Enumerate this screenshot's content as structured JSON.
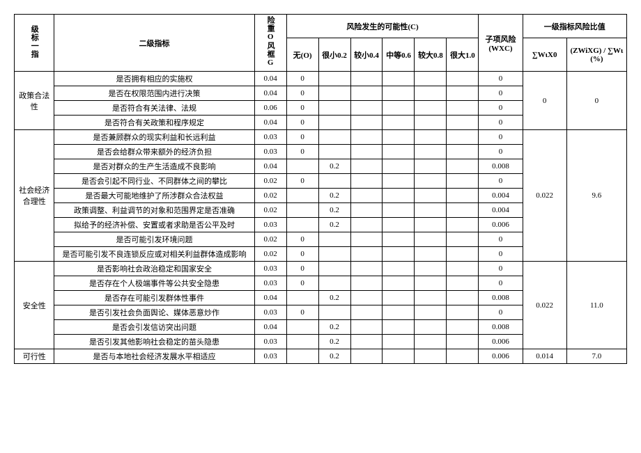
{
  "header": {
    "col_l1": "级标一指",
    "col_l2": "二级指标",
    "col_weight": "险重O风框G",
    "col_c_group": "风险发生的可能性(C)",
    "col_wxc": "子项风险(WXC)",
    "col_top_group": "一级指标风险比值",
    "col_sum": "∑WιX0",
    "col_ratio": "(ZWiXG) / ∑Wι(%)",
    "c_headers": [
      "无(O)",
      "很小0.2",
      "较小0.4",
      "中等0.6",
      "较大0.8",
      "很大1.0"
    ]
  },
  "groups": [
    {
      "name": "政策合法性",
      "sum": "0",
      "ratio": "0",
      "rows": [
        {
          "label": "是否拥有相应的实施权",
          "w": "0.04",
          "c": [
            "0",
            "",
            "",
            "",
            "",
            ""
          ],
          "wxc": "0"
        },
        {
          "label": "是否在权限范围内进行决策",
          "w": "0.04",
          "c": [
            "0",
            "",
            "",
            "",
            "",
            ""
          ],
          "wxc": "0"
        },
        {
          "label": "是否符合有关法律、法规",
          "w": "0.06",
          "c": [
            "0",
            "",
            "",
            "",
            "",
            ""
          ],
          "wxc": "0"
        },
        {
          "label": "是否符合有关政策和程序规定",
          "w": "0.04",
          "c": [
            "0",
            "",
            "",
            "",
            "",
            ""
          ],
          "wxc": "0"
        }
      ]
    },
    {
      "name": "社会经济合理性",
      "sum": "0.022",
      "ratio": "9.6",
      "rows": [
        {
          "label": "是否兼顾群众的现实利益和长远利益",
          "w": "0.03",
          "c": [
            "0",
            "",
            "",
            "",
            "",
            ""
          ],
          "wxc": "0"
        },
        {
          "label": "是否会给群众带来额外的经济负担",
          "w": "0.03",
          "c": [
            "0",
            "",
            "",
            "",
            "",
            ""
          ],
          "wxc": "0"
        },
        {
          "label": "是否对群众的生产生活造成不良影响",
          "w": "0.04",
          "c": [
            "",
            "0.2",
            "",
            "",
            "",
            ""
          ],
          "wxc": "0.008"
        },
        {
          "label": "是否会引起不同行业、不同群体之间的攀比",
          "w": "0.02",
          "c": [
            "0",
            "",
            "",
            "",
            "",
            ""
          ],
          "wxc": "0"
        },
        {
          "label": "是否最大可能地维护了所涉群众合法权益",
          "w": "0.02",
          "c": [
            "",
            "0.2",
            "",
            "",
            "",
            ""
          ],
          "wxc": "0.004"
        },
        {
          "label": "政策调整、利益调节的对象和范围界定是否准确",
          "w": "0.02",
          "c": [
            "",
            "0.2",
            "",
            "",
            "",
            ""
          ],
          "wxc": "0.004"
        },
        {
          "label": "拟给予的经济补偿、安置或者求助是否公平及时",
          "w": "0.03",
          "c": [
            "",
            "0.2",
            "",
            "",
            "",
            ""
          ],
          "wxc": "0.006"
        },
        {
          "label": "是否可能引发环境问题",
          "w": "0.02",
          "c": [
            "0",
            "",
            "",
            "",
            "",
            ""
          ],
          "wxc": "0"
        },
        {
          "label": "是否可能引发不良连锁反应或对相关利益群体造成影响",
          "w": "0.02",
          "c": [
            "0",
            "",
            "",
            "",
            "",
            ""
          ],
          "wxc": "0"
        }
      ]
    },
    {
      "name": "安全性",
      "sum": "0.022",
      "ratio": "11.0",
      "rows": [
        {
          "label": "是否影响社会政治稳定和国家安全",
          "w": "0.03",
          "c": [
            "0",
            "",
            "",
            "",
            "",
            ""
          ],
          "wxc": "0"
        },
        {
          "label": "是否存在个人极端事件等公共安全隐患",
          "w": "0.03",
          "c": [
            "0",
            "",
            "",
            "",
            "",
            ""
          ],
          "wxc": "0"
        },
        {
          "label": "是否存在可能引发群体性事件",
          "w": "0.04",
          "c": [
            "",
            "0.2",
            "",
            "",
            "",
            ""
          ],
          "wxc": "0.008"
        },
        {
          "label": "是否引发社会负面舆论、媒体恶意炒作",
          "w": "0.03",
          "c": [
            "0",
            "",
            "",
            "",
            "",
            ""
          ],
          "wxc": "0"
        },
        {
          "label": "是否会引发信访突出问题",
          "w": "0.04",
          "c": [
            "",
            "0.2",
            "",
            "",
            "",
            ""
          ],
          "wxc": "0.008"
        },
        {
          "label": "是否引发其他影响社会稳定的苗头隐患",
          "w": "0.03",
          "c": [
            "",
            "0.2",
            "",
            "",
            "",
            ""
          ],
          "wxc": "0.006"
        }
      ]
    },
    {
      "name": "可行性",
      "sum": "0.014",
      "ratio": "7.0",
      "rows": [
        {
          "label": "是否与本地社会经济发展水平相适应",
          "w": "0.03",
          "c": [
            "",
            "0.2",
            "",
            "",
            "",
            ""
          ],
          "wxc": "0.006"
        }
      ]
    }
  ]
}
